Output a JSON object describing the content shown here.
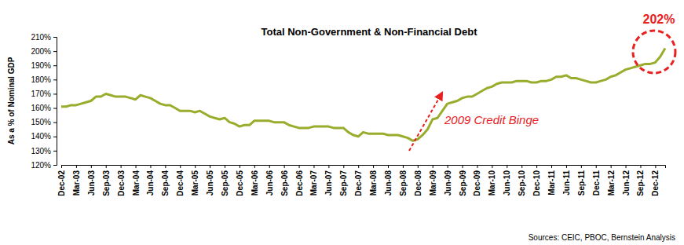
{
  "chart_data": {
    "type": "line",
    "title": "Total Non-Government & Non-Financial Debt",
    "y_label": "As a % of Nominal GDP",
    "source": "Sources: CEIC, PBOC, Bernstein Analysis",
    "color": "#9aac2c",
    "grid": false,
    "categories": [
      "Dec-02",
      null,
      null,
      "Mar-03",
      null,
      null,
      "Jun-03",
      null,
      null,
      "Sep-03",
      null,
      null,
      "Dec-03",
      null,
      null,
      "Mar-04",
      null,
      null,
      "Jun-04",
      null,
      null,
      "Sep-04",
      null,
      null,
      "Dec-04",
      null,
      null,
      "Mar-05",
      null,
      null,
      "Jun-05",
      null,
      null,
      "Sep-05",
      null,
      null,
      "Dec-05",
      null,
      null,
      "Mar-06",
      null,
      null,
      "Jun-06",
      null,
      null,
      "Sep-06",
      null,
      null,
      "Dec-06",
      null,
      null,
      "Mar-07",
      null,
      null,
      "Jun-07",
      null,
      null,
      "Sep-07",
      null,
      null,
      "Dec-07",
      null,
      null,
      "Mar-08",
      null,
      null,
      "Jun-08",
      null,
      null,
      "Sep-08",
      null,
      null,
      "Dec-08",
      null,
      null,
      "Mar-09",
      null,
      null,
      "Jun-09",
      null,
      null,
      "Sep-09",
      null,
      null,
      "Dec-09",
      null,
      null,
      "Mar-10",
      null,
      null,
      "Jun-10",
      null,
      null,
      "Sep-10",
      null,
      null,
      "Dec-10",
      null,
      null,
      "Mar-11",
      null,
      null,
      "Jun-11",
      null,
      null,
      "Sep-11",
      null,
      null,
      "Dec-11",
      null,
      null,
      "Mar-12",
      null,
      null,
      "Jun-12",
      null,
      null,
      "Sep-12",
      null,
      null,
      "Dec-12",
      null,
      null
    ],
    "values": [
      161,
      161,
      162,
      162,
      163,
      164,
      165,
      168,
      168,
      170,
      169,
      168,
      168,
      168,
      167,
      166,
      169,
      168,
      167,
      165,
      163,
      162,
      162,
      160,
      158,
      158,
      158,
      157,
      158,
      156,
      154,
      153,
      152,
      153,
      150,
      149,
      147,
      148,
      148,
      151,
      151,
      151,
      151,
      150,
      150,
      150,
      148,
      147,
      146,
      146,
      146,
      147,
      147,
      147,
      147,
      146,
      146,
      146,
      143,
      141,
      140,
      143,
      142,
      142,
      142,
      142,
      141,
      141,
      141,
      140,
      139,
      137,
      138,
      141,
      145,
      152,
      153,
      158,
      163,
      164,
      165,
      167,
      168,
      168,
      170,
      172,
      174,
      175,
      177,
      178,
      178,
      178,
      179,
      179,
      179,
      178,
      178,
      179,
      179,
      180,
      182,
      182,
      183,
      181,
      181,
      180,
      179,
      178,
      178,
      179,
      180,
      182,
      183,
      185,
      187,
      188,
      189,
      190,
      191,
      191,
      192,
      196,
      202
    ],
    "ylim": [
      120,
      210
    ],
    "yticks": [
      {
        "value": 120,
        "label": "120%"
      },
      {
        "value": 130,
        "label": "130%"
      },
      {
        "value": 140,
        "label": "140%"
      },
      {
        "value": 150,
        "label": "150%"
      },
      {
        "value": 160,
        "label": "160%"
      },
      {
        "value": 170,
        "label": "170%"
      },
      {
        "value": 180,
        "label": "180%"
      },
      {
        "value": 190,
        "label": "190%"
      },
      {
        "value": 200,
        "label": "200%"
      },
      {
        "value": 210,
        "label": "210%"
      }
    ],
    "annotations": [
      {
        "text": "2009 Credit Binge"
      },
      {
        "text": "202%"
      }
    ]
  }
}
